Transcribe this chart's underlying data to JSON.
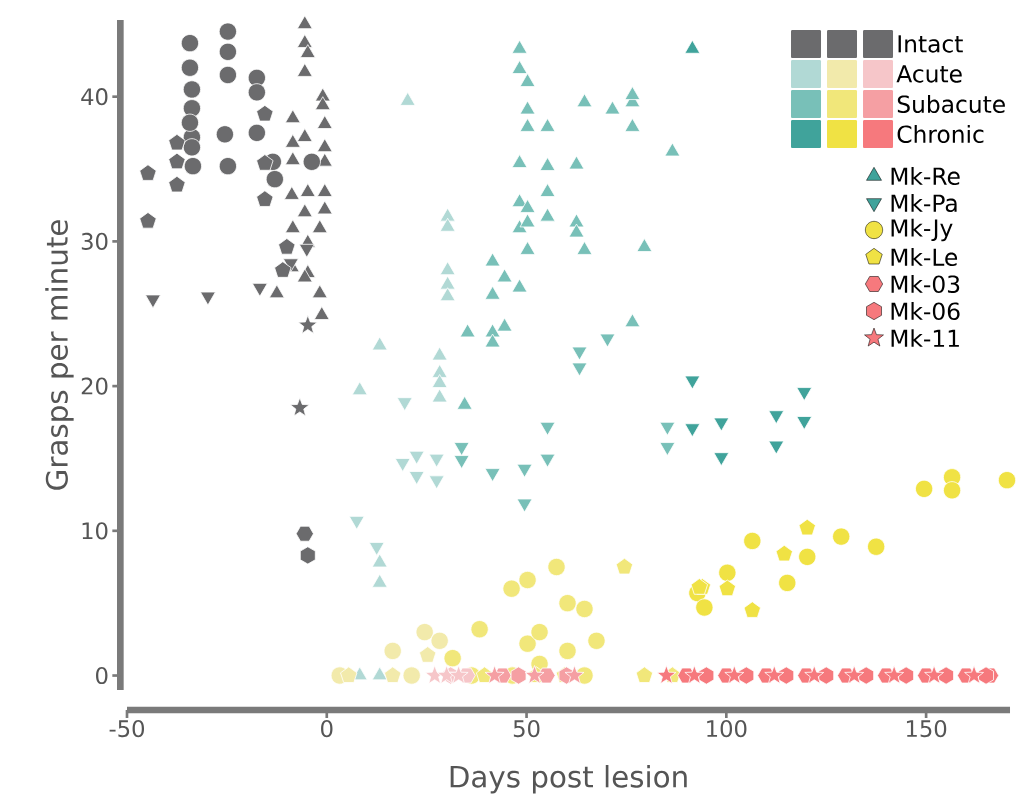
{
  "chart_data": {
    "type": "scatter",
    "xlabel": "Days post lesion",
    "ylabel": "Grasps per minute",
    "xlim": [
      -50,
      171
    ],
    "ylim": [
      -1,
      45.3
    ],
    "xticks": [
      -50,
      0,
      50,
      100,
      150
    ],
    "yticks": [
      0,
      10,
      20,
      30,
      40
    ],
    "legend": "top right",
    "annotations": [
      "Intact",
      "Acute",
      "Subacute",
      "Chronic"
    ],
    "series": [
      {
        "marker": "triangle",
        "color": "#6b6b6d",
        "x": [
          -5.5,
          -5.5,
          -4.75,
          -5.5,
          -1,
          -1,
          -8.5,
          -0.5,
          -5.5,
          -8.5,
          -0.5,
          -8.5,
          -0.5,
          -4.75,
          -0.5,
          -8.75,
          -0.5,
          -5.5,
          -8.5,
          -1.75,
          -4.75,
          -8.75,
          -4.75,
          -12.5,
          -1.75,
          -1.25,
          -5.5
        ],
        "values": [
          45.0,
          43.7,
          43.0,
          41.7,
          40.0,
          39.4,
          38.5,
          38.1,
          37.2,
          36.8,
          36.5,
          35.6,
          35.5,
          33.4,
          33.4,
          33.2,
          32.2,
          32.0,
          30.9,
          30.9,
          29.9,
          28.2,
          27.8,
          26.4,
          26.4,
          24.9,
          27.5
        ]
      },
      {
        "marker": "triangle",
        "color": "#b1d9d5",
        "x": [
          20.25,
          30.25,
          30.25,
          30.25,
          30.25,
          30.25,
          13.25,
          28.25,
          28.25,
          28.25,
          28.25,
          8.25,
          13.25,
          13.25,
          8.25,
          13.25
        ],
        "values": [
          39.7,
          31.7,
          31.0,
          28.0,
          27.0,
          26.2,
          22.8,
          22.1,
          20.9,
          20.2,
          19.2,
          19.7,
          7.8,
          6.4,
          0,
          0
        ]
      },
      {
        "marker": "triangle",
        "color": "#78c0b8",
        "x": [
          48.25,
          48.25,
          50.25,
          50.25,
          50.25,
          55.25,
          64.5,
          71.5,
          76.5,
          76.5,
          76.5,
          86.5,
          48.25,
          55.25,
          62.5,
          55.25,
          48.25,
          50.25,
          55.25,
          48.25,
          50.25,
          62.5,
          62.5,
          50.25,
          64.5,
          79.5,
          41.5,
          44.5,
          41.5,
          48.25,
          35.25,
          41.5,
          44.5,
          41.5,
          76.5,
          34.5
        ],
        "values": [
          43.3,
          41.9,
          41.0,
          39.1,
          37.9,
          37.9,
          39.6,
          39.1,
          39.6,
          40.1,
          37.9,
          36.2,
          35.4,
          35.2,
          35.3,
          33.4,
          32.7,
          32.3,
          31.7,
          30.9,
          31.3,
          31.3,
          30.6,
          29.4,
          29.4,
          29.6,
          28.6,
          27.5,
          26.3,
          26.8,
          23.7,
          23.7,
          24.1,
          23.0,
          24.4,
          18.7
        ]
      },
      {
        "name": "Mk-Re",
        "marker": "triangle",
        "color": "#40a39b",
        "x": [
          91.5
        ],
        "values": [
          43.3
        ]
      },
      {
        "marker": "triangle-down",
        "color": "#6b6b6d",
        "x": [
          -43.5,
          -29.75,
          -16.75,
          -9,
          -5
        ],
        "values": [
          26.0,
          26.2,
          26.8,
          28.5,
          29.5
        ]
      },
      {
        "marker": "triangle-down",
        "color": "#b1d9d5",
        "x": [
          19.5,
          19,
          22.5,
          22.5,
          27.5,
          27.5,
          7.5,
          12.5
        ],
        "values": [
          18.9,
          14.7,
          15.2,
          13.8,
          15.0,
          13.5,
          10.7,
          8.9
        ]
      },
      {
        "marker": "triangle-down",
        "color": "#78c0b8",
        "x": [
          63.25,
          63.25,
          70.25,
          55.25,
          55.25,
          49.5,
          49.5,
          41.5,
          33.75,
          33.75,
          85.25,
          85.25
        ],
        "values": [
          22.4,
          21.3,
          23.3,
          17.2,
          15.0,
          14.3,
          11.9,
          14.0,
          15.8,
          14.9,
          17.2,
          15.8
        ]
      },
      {
        "name": "Mk-Pa",
        "marker": "triangle-down",
        "color": "#40a39b",
        "x": [
          91.5,
          91.5,
          98.75,
          98.75,
          112.5,
          112.5,
          119.5,
          119.5
        ],
        "values": [
          20.4,
          17.1,
          17.5,
          15.1,
          18.0,
          15.9,
          19.6,
          17.6
        ]
      },
      {
        "marker": "circle",
        "color": "#6b6b6d",
        "x": [
          -34.25,
          -34.25,
          -33.75,
          -33.75,
          -33.75,
          -33.75,
          -33.5,
          -34.25,
          -24.75,
          -24.75,
          -24.75,
          -25.5,
          -24.75,
          -17.5,
          -17.5,
          -17.5,
          -13.5,
          -13,
          -3.75
        ],
        "values": [
          43.7,
          42.0,
          40.5,
          39.2,
          37.2,
          36.5,
          35.2,
          38.2,
          44.5,
          43.1,
          41.5,
          37.4,
          35.2,
          41.3,
          40.3,
          37.5,
          35.5,
          34.3,
          35.5
        ]
      },
      {
        "marker": "circle",
        "color": "#f2eaab",
        "x": [
          16.5,
          24.5,
          28.25,
          21.25,
          3.25
        ],
        "values": [
          1.7,
          3.0,
          2.4,
          0,
          0
        ]
      },
      {
        "marker": "circle",
        "color": "#f1e77a",
        "x": [
          31.5,
          38.25,
          46.25,
          50.25,
          57.5,
          60.25,
          64.5,
          67.5,
          50.25,
          53.25,
          60.25,
          53.25,
          36.25,
          46.5,
          64.5
        ],
        "values": [
          1.2,
          3.2,
          6.0,
          6.6,
          7.5,
          5.0,
          4.6,
          2.4,
          2.2,
          3.0,
          1.7,
          0.8,
          0,
          0,
          0
        ]
      },
      {
        "name": "Mk-Jy",
        "marker": "circle",
        "color": "#f0e244",
        "x": [
          92.75,
          94.5,
          100.25,
          106.5,
          115.25,
          120.25,
          128.75,
          137.5,
          149.5,
          156.5,
          156.5,
          170.25
        ],
        "values": [
          5.7,
          4.7,
          7.1,
          9.3,
          6.4,
          8.2,
          9.6,
          8.9,
          12.9,
          13.7,
          12.8,
          13.5
        ]
      },
      {
        "color": "#6b6b6d",
        "x": [
          -44.75,
          -44.75,
          -37.5,
          -37.5,
          -37.5,
          -15.5,
          -15.5,
          -15.5,
          -10,
          -11
        ],
        "values": [
          34.7,
          31.4,
          36.8,
          35.5,
          33.9,
          38.8,
          35.4,
          32.9,
          29.6,
          28.0
        ]
      },
      {
        "color": "#f2eaab",
        "x": [
          25.25,
          16.5,
          5.5
        ],
        "values": [
          1.4,
          0,
          0
        ]
      },
      {
        "color": "#f1e77a",
        "x": [
          74.5,
          39.5,
          52.5,
          59.5,
          79.5,
          86.5
        ],
        "values": [
          7.5,
          0,
          0,
          0,
          0,
          0
        ]
      },
      {
        "name": "Mk-Le",
        "color": "#f0e244",
        "x": [
          94,
          100.25,
          106.5,
          114.5,
          120.25,
          93.25
        ],
        "values": [
          6.1,
          6.0,
          4.5,
          8.4,
          10.2,
          6.1
        ]
      },
      {
        "color": "#6b6b6d",
        "x": [
          -5.5
        ],
        "values": [
          9.8
        ]
      },
      {
        "color": "#f6c6c9",
        "x": [
          35
        ],
        "values": [
          0
        ]
      },
      {
        "color": "#f59fa3",
        "x": [
          44,
          55
        ],
        "values": [
          0,
          0
        ]
      },
      {
        "name": "Mk-03",
        "color": "#f6797d",
        "x": [
          90,
          100,
          110,
          120,
          130,
          140,
          150,
          160,
          166
        ],
        "values": [
          0,
          0,
          0,
          0,
          0,
          0,
          0,
          0,
          0
        ]
      },
      {
        "color": "#6b6b6d",
        "x": [
          -4.75
        ],
        "values": [
          8.3
        ]
      },
      {
        "color": "#f6c6c9",
        "x": [
          31
        ],
        "values": [
          0
        ]
      },
      {
        "color": "#f59fa3",
        "x": [
          48,
          60
        ],
        "values": [
          0,
          0
        ]
      },
      {
        "name": "Mk-06",
        "color": "#f6797d",
        "x": [
          95,
          105,
          115,
          125,
          135,
          145,
          155,
          165
        ],
        "values": [
          0,
          0,
          0,
          0,
          0,
          0,
          0,
          0
        ]
      },
      {
        "marker": "star",
        "color": "#6b6b6d",
        "x": [
          -6.75,
          -4.75
        ],
        "values": [
          18.5,
          24.2
        ]
      },
      {
        "marker": "star",
        "color": "#f6c6c9",
        "x": [
          27,
          30,
          33
        ],
        "values": [
          0,
          0,
          0
        ]
      },
      {
        "marker": "star",
        "color": "#f59fa3",
        "x": [
          42,
          52,
          62
        ],
        "values": [
          0,
          0,
          0
        ]
      },
      {
        "name": "Mk-11",
        "marker": "star",
        "color": "#f6797d",
        "x": [
          85,
          92,
          102,
          112,
          122,
          132,
          142,
          152,
          162
        ],
        "values": [
          0,
          0,
          0,
          0,
          0,
          0,
          0,
          0,
          0
        ]
      }
    ]
  }
}
